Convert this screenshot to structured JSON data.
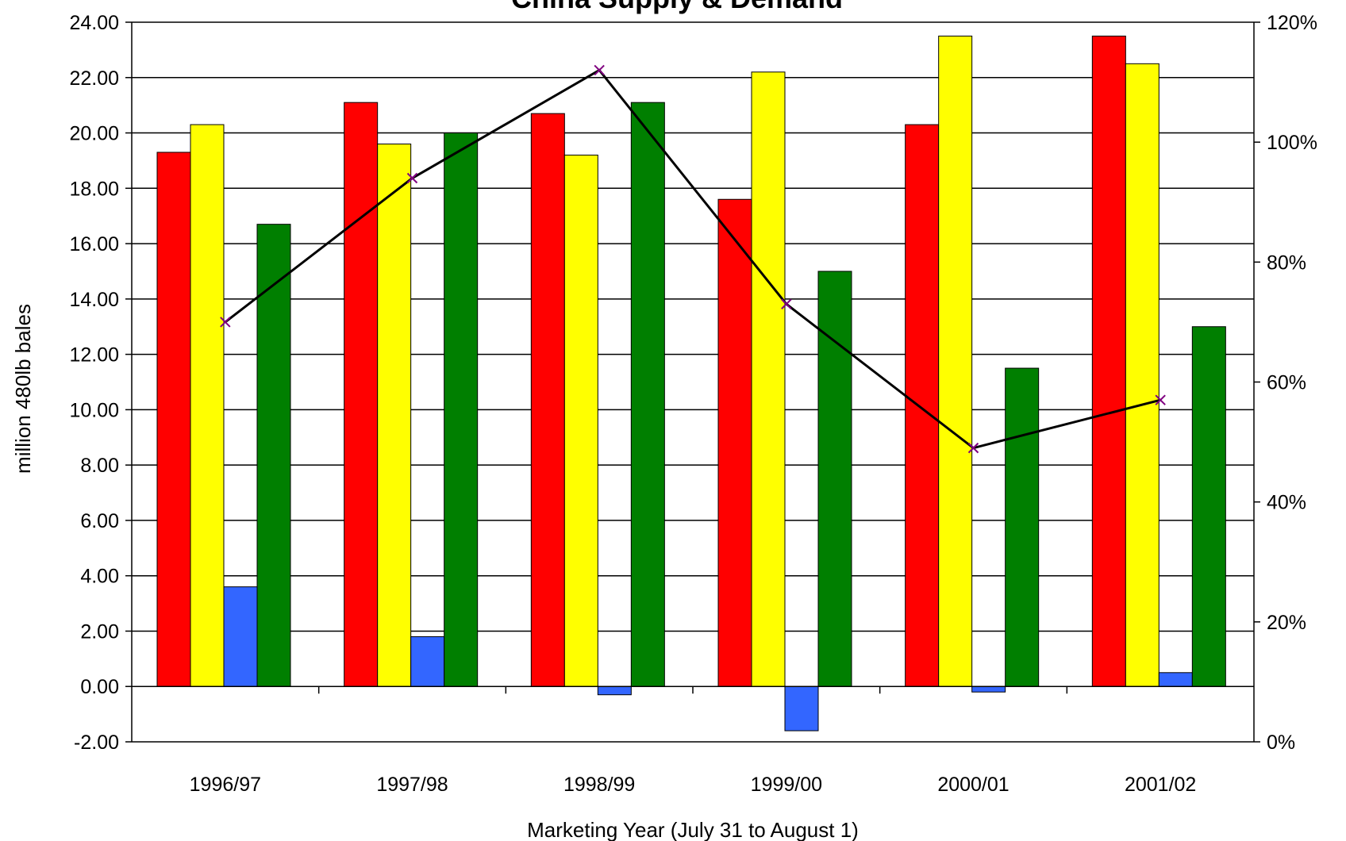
{
  "chart_data": {
    "type": "bar",
    "title": "China Supply & Demand",
    "xlabel": "Marketing Year (July 31 to August 1)",
    "ylabel": "million 480lb bales",
    "categories": [
      "1996/97",
      "1997/98",
      "1998/99",
      "1999/00",
      "2000/01",
      "2001/02"
    ],
    "ylim": [
      -2,
      24
    ],
    "y_ticks": [
      "-2.00",
      "0.00",
      "2.00",
      "4.00",
      "6.00",
      "8.00",
      "10.00",
      "12.00",
      "14.00",
      "16.00",
      "18.00",
      "20.00",
      "22.00",
      "24.00"
    ],
    "y2lim": [
      0,
      120
    ],
    "y2_ticks": [
      "0%",
      "20%",
      "40%",
      "60%",
      "80%",
      "100%",
      "120%"
    ],
    "grid": true,
    "series": [
      {
        "color": "#ff0000",
        "values": [
          19.3,
          21.1,
          20.7,
          17.6,
          20.3,
          23.5
        ]
      },
      {
        "color": "#ffff00",
        "values": [
          20.3,
          19.6,
          19.2,
          22.2,
          23.5,
          22.5
        ]
      },
      {
        "color": "#3366ff",
        "values": [
          3.6,
          1.8,
          -0.3,
          -1.6,
          -0.2,
          0.5
        ]
      },
      {
        "color": "#007f00",
        "values": [
          16.7,
          20.0,
          21.1,
          15.0,
          11.5,
          13.0
        ]
      }
    ],
    "line_series": {
      "axis": "right",
      "color": "#000000",
      "marker_color": "#800080",
      "values": [
        70,
        94,
        112,
        73,
        49,
        57
      ]
    }
  }
}
